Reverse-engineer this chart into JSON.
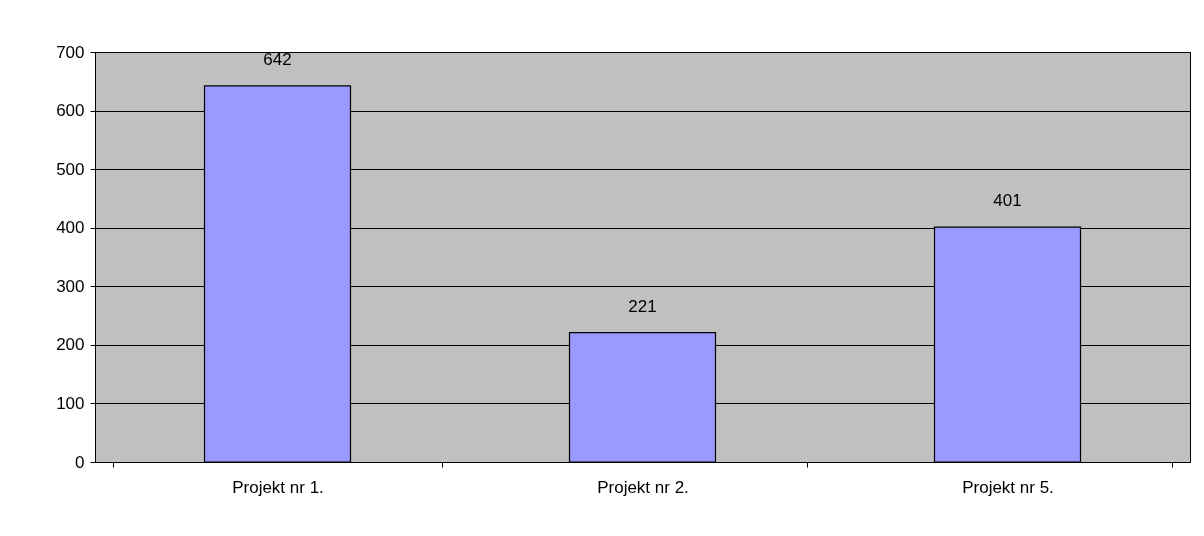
{
  "chart_data": {
    "type": "bar",
    "categories": [
      "Projekt nr 1.",
      "Projekt nr 2.",
      "Projekt nr 5."
    ],
    "series": [
      {
        "color": "#9999ff",
        "values": [
          642,
          221,
          401
        ]
      }
    ],
    "ylim": [
      0,
      700
    ],
    "yticks": [
      0,
      100,
      200,
      300,
      400,
      500,
      600,
      700
    ],
    "grid": "y",
    "data_labels": true
  }
}
